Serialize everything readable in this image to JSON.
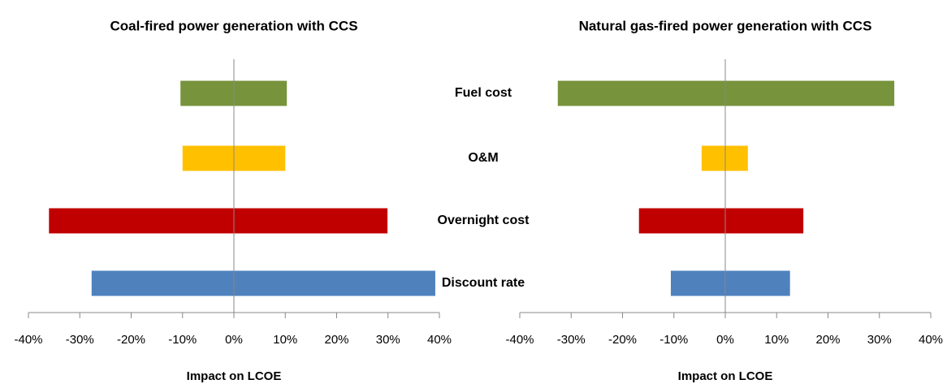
{
  "chart_data": [
    {
      "type": "tornado",
      "title": "Coal-fired power generation with CCS",
      "x_label": "Impact on LCOE",
      "categories": [
        "Fuel cost",
        "O&M",
        "Overnight cost",
        "Discount rate"
      ],
      "low": [
        -10.4,
        -10,
        -36,
        -27.7
      ],
      "high": [
        10.3,
        10,
        29.9,
        39.2
      ],
      "colors": [
        "#77933c",
        "#ffc000",
        "#c00000",
        "#4f81bd"
      ],
      "xlim": [
        -40,
        40
      ],
      "xticks": [
        {
          "value": -40,
          "label": "-40%"
        },
        {
          "value": -30,
          "label": "-30%"
        },
        {
          "value": -20,
          "label": "-20%"
        },
        {
          "value": -10,
          "label": "-10%"
        },
        {
          "value": 0,
          "label": "0%"
        },
        {
          "value": 10,
          "label": "10%"
        },
        {
          "value": 20,
          "label": "20%"
        },
        {
          "value": 30,
          "label": "30%"
        },
        {
          "value": 40,
          "label": "40%"
        }
      ]
    },
    {
      "type": "tornado",
      "title": "Natural gas-fired power generation with CCS",
      "x_label": "Impact on LCOE",
      "low": [
        -32.6,
        -4.6,
        -16.8,
        -10.6
      ],
      "high": [
        32.9,
        4.4,
        15.2,
        12.6
      ],
      "colors": [
        "#77933c",
        "#ffc000",
        "#c00000",
        "#4f81bd"
      ],
      "xlim": [
        -40,
        40
      ],
      "xticks": [
        {
          "value": -40,
          "label": "-40%"
        },
        {
          "value": -30,
          "label": "-30%"
        },
        {
          "value": -20,
          "label": "-20%"
        },
        {
          "value": -10,
          "label": "-10%"
        },
        {
          "value": 0,
          "label": "0%"
        },
        {
          "value": 10,
          "label": "10%"
        },
        {
          "value": 20,
          "label": "20%"
        },
        {
          "value": 30,
          "label": "30%"
        },
        {
          "value": 40,
          "label": "40%"
        }
      ]
    }
  ]
}
